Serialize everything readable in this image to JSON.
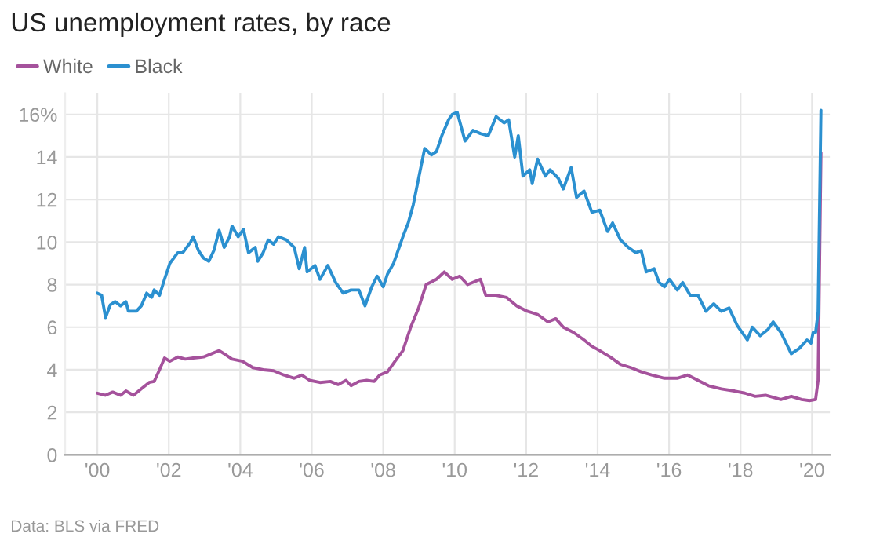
{
  "chart_data": {
    "type": "line",
    "title": "US unemployment rates, by race",
    "annotations": [
      "Data: BLS via FRED"
    ],
    "legend": "top left",
    "grid": true,
    "line_style": "solid",
    "xlim": [
      1999.1,
      2020.5
    ],
    "xticks": [
      {
        "value": 2000,
        "label": "'00"
      },
      {
        "value": 2002,
        "label": "'02"
      },
      {
        "value": 2004,
        "label": "'04"
      },
      {
        "value": 2006,
        "label": "'06"
      },
      {
        "value": 2008,
        "label": "'08"
      },
      {
        "value": 2010,
        "label": "'10"
      },
      {
        "value": 2012,
        "label": "'12"
      },
      {
        "value": 2014,
        "label": "'14"
      },
      {
        "value": 2016,
        "label": "'16"
      },
      {
        "value": 2018,
        "label": "'18"
      },
      {
        "value": 2020,
        "label": "'20"
      }
    ],
    "ylim": [
      0,
      17
    ],
    "yticks": [
      0,
      2,
      4,
      6,
      8,
      10,
      12,
      14,
      {
        "value": 16,
        "label": "16%"
      }
    ],
    "series": [
      {
        "name": "White",
        "color": "#a5529c",
        "x": [
          2000.0,
          2000.22,
          2000.43,
          2000.65,
          2000.8,
          2001.01,
          2001.23,
          2001.45,
          2001.59,
          2001.74,
          2001.88,
          2002.03,
          2002.25,
          2002.46,
          2002.68,
          2002.97,
          2003.19,
          2003.41,
          2003.55,
          2003.77,
          2004.06,
          2004.35,
          2004.64,
          2004.93,
          2005.22,
          2005.51,
          2005.72,
          2005.94,
          2006.23,
          2006.52,
          2006.74,
          2006.96,
          2007.1,
          2007.32,
          2007.54,
          2007.75,
          2007.9,
          2008.12,
          2008.33,
          2008.55,
          2008.77,
          2008.99,
          2009.2,
          2009.49,
          2009.71,
          2009.93,
          2010.14,
          2010.36,
          2010.72,
          2010.87,
          2011.16,
          2011.45,
          2011.74,
          2012.03,
          2012.32,
          2012.61,
          2012.83,
          2013.04,
          2013.33,
          2013.62,
          2013.84,
          2014.06,
          2014.35,
          2014.64,
          2014.93,
          2015.22,
          2015.51,
          2015.87,
          2016.23,
          2016.52,
          2016.81,
          2017.1,
          2017.46,
          2017.83,
          2018.12,
          2018.41,
          2018.7,
          2019.13,
          2019.42,
          2019.71,
          2019.93,
          2020.1,
          2020.17,
          2020.25
        ],
        "values": [
          2.9,
          2.8,
          2.95,
          2.8,
          3.0,
          2.8,
          3.1,
          3.4,
          3.45,
          4.0,
          4.55,
          4.4,
          4.6,
          4.5,
          4.55,
          4.6,
          4.75,
          4.9,
          4.75,
          4.5,
          4.4,
          4.1,
          4.0,
          3.95,
          3.75,
          3.6,
          3.75,
          3.5,
          3.4,
          3.45,
          3.3,
          3.5,
          3.25,
          3.45,
          3.5,
          3.45,
          3.75,
          3.9,
          4.4,
          4.9,
          6.0,
          6.9,
          8.0,
          8.25,
          8.6,
          8.25,
          8.4,
          8.0,
          8.25,
          7.5,
          7.5,
          7.4,
          7.0,
          6.75,
          6.6,
          6.25,
          6.4,
          6.0,
          5.75,
          5.4,
          5.1,
          4.9,
          4.6,
          4.25,
          4.1,
          3.9,
          3.75,
          3.6,
          3.6,
          3.75,
          3.5,
          3.25,
          3.1,
          3.0,
          2.9,
          2.75,
          2.8,
          2.6,
          2.75,
          2.6,
          2.55,
          2.6,
          3.5,
          14.2
        ]
      },
      {
        "name": "Black",
        "color": "#2b90d0",
        "x": [
          2000.0,
          2000.12,
          2000.23,
          2000.36,
          2000.5,
          2000.65,
          2000.8,
          2000.87,
          2001.09,
          2001.23,
          2001.38,
          2001.52,
          2001.59,
          2001.74,
          2001.88,
          2002.03,
          2002.25,
          2002.39,
          2002.61,
          2002.68,
          2002.83,
          2002.97,
          2003.12,
          2003.26,
          2003.41,
          2003.55,
          2003.7,
          2003.77,
          2003.94,
          2004.09,
          2004.23,
          2004.42,
          2004.49,
          2004.64,
          2004.78,
          2004.93,
          2005.07,
          2005.29,
          2005.51,
          2005.65,
          2005.8,
          2005.87,
          2006.09,
          2006.23,
          2006.45,
          2006.67,
          2006.88,
          2007.1,
          2007.32,
          2007.49,
          2007.68,
          2007.83,
          2008.0,
          2008.12,
          2008.29,
          2008.55,
          2008.7,
          2008.84,
          2008.99,
          2009.16,
          2009.35,
          2009.49,
          2009.64,
          2009.83,
          2009.93,
          2010.07,
          2010.29,
          2010.51,
          2010.72,
          2010.94,
          2011.16,
          2011.38,
          2011.51,
          2011.68,
          2011.78,
          2011.91,
          2012.1,
          2012.17,
          2012.32,
          2012.54,
          2012.67,
          2012.9,
          2013.04,
          2013.26,
          2013.41,
          2013.62,
          2013.84,
          2014.06,
          2014.28,
          2014.42,
          2014.64,
          2014.86,
          2015.07,
          2015.22,
          2015.36,
          2015.58,
          2015.72,
          2015.87,
          2016.01,
          2016.23,
          2016.38,
          2016.59,
          2016.81,
          2017.03,
          2017.25,
          2017.46,
          2017.68,
          2017.9,
          2018.19,
          2018.33,
          2018.55,
          2018.77,
          2018.91,
          2019.13,
          2019.42,
          2019.64,
          2019.86,
          2019.97,
          2020.03,
          2020.1,
          2020.17,
          2020.25
        ],
        "values": [
          7.6,
          7.5,
          6.45,
          7.05,
          7.2,
          7.0,
          7.2,
          6.75,
          6.75,
          7.0,
          7.6,
          7.4,
          7.75,
          7.5,
          8.25,
          9.0,
          9.5,
          9.5,
          10.0,
          10.25,
          9.6,
          9.25,
          9.1,
          9.6,
          10.55,
          9.75,
          10.25,
          10.75,
          10.25,
          10.6,
          9.5,
          9.75,
          9.1,
          9.5,
          10.1,
          9.9,
          10.25,
          10.1,
          9.75,
          8.75,
          9.75,
          8.6,
          8.9,
          8.25,
          8.9,
          8.1,
          7.6,
          7.75,
          7.75,
          7.0,
          7.9,
          8.4,
          7.9,
          8.5,
          9.0,
          10.25,
          10.9,
          11.75,
          13.0,
          14.4,
          14.1,
          14.25,
          15.0,
          15.75,
          16.0,
          16.1,
          14.75,
          15.25,
          15.1,
          15.0,
          15.9,
          15.6,
          15.75,
          14.0,
          15.0,
          13.1,
          13.4,
          12.75,
          13.9,
          13.1,
          13.4,
          13.0,
          12.5,
          13.5,
          12.1,
          12.4,
          11.4,
          11.5,
          10.5,
          10.9,
          10.1,
          9.75,
          9.5,
          9.6,
          8.6,
          8.75,
          8.1,
          7.9,
          8.25,
          7.75,
          8.1,
          7.5,
          7.5,
          6.75,
          7.1,
          6.75,
          6.9,
          6.1,
          5.4,
          6.0,
          5.6,
          5.9,
          6.25,
          5.75,
          4.75,
          5.0,
          5.4,
          5.25,
          5.75,
          5.75,
          6.7,
          16.2
        ]
      }
    ]
  }
}
